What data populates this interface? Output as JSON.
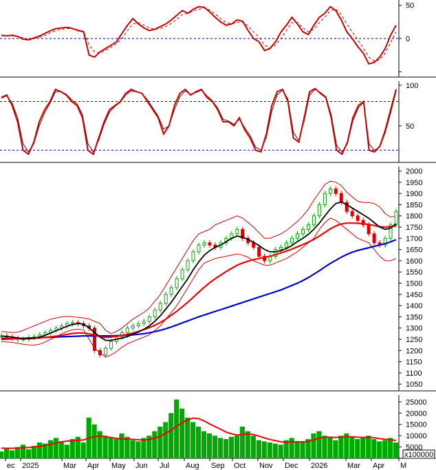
{
  "chart_data": [
    {
      "type": "line",
      "panel": "momentum-oscillator",
      "y_ticks": [
        50,
        0,
        -50
      ],
      "y_tick_labels": [
        "50",
        "0",
        ""
      ],
      "reference_lines": [
        0
      ],
      "ylim": [
        -58,
        58
      ],
      "colors": {
        "main": "#cc0000",
        "signal": "#cc0000",
        "ref": "#0000aa"
      },
      "series": [
        {
          "role": "main",
          "values": [
            5,
            4,
            5,
            3,
            -1,
            -2,
            1,
            4,
            8,
            12,
            15,
            16,
            17,
            15,
            12,
            10,
            -25,
            -28,
            -20,
            -15,
            -10,
            -5,
            8,
            20,
            30,
            22,
            16,
            12,
            14,
            18,
            22,
            28,
            35,
            42,
            38,
            44,
            48,
            47,
            40,
            32,
            25,
            20,
            22,
            28,
            26,
            12,
            0,
            -5,
            -18,
            -15,
            -5,
            10,
            20,
            32,
            22,
            10,
            6,
            20,
            32,
            38,
            48,
            42,
            28,
            10,
            0,
            -12,
            -22,
            -38,
            -36,
            -28,
            -15,
            5,
            20
          ]
        },
        {
          "role": "signal",
          "dashed": true,
          "values": [
            4,
            4,
            4,
            3,
            1,
            -1,
            0,
            2,
            5,
            9,
            12,
            14,
            15,
            15,
            13,
            11,
            -10,
            -20,
            -22,
            -18,
            -13,
            -8,
            0,
            12,
            22,
            24,
            20,
            16,
            14,
            15,
            18,
            23,
            29,
            36,
            38,
            41,
            44,
            46,
            43,
            37,
            30,
            24,
            22,
            24,
            25,
            19,
            10,
            2,
            -10,
            -14,
            -10,
            0,
            12,
            24,
            24,
            16,
            10,
            14,
            24,
            32,
            42,
            44,
            36,
            22,
            10,
            -2,
            -14,
            -28,
            -34,
            -32,
            -22,
            -6,
            10
          ]
        }
      ]
    },
    {
      "type": "line",
      "panel": "stochastic",
      "y_ticks": [
        100,
        50
      ],
      "y_tick_labels": [
        "100",
        "50"
      ],
      "reference_lines": [
        80,
        20
      ],
      "ylim": [
        5,
        105
      ],
      "colors": {
        "main": "#cc0000",
        "signal": "#cc0000",
        "ref": "#0000aa"
      },
      "series": [
        {
          "role": "main",
          "values": [
            85,
            88,
            75,
            55,
            20,
            15,
            30,
            55,
            70,
            80,
            95,
            92,
            88,
            80,
            75,
            60,
            20,
            15,
            35,
            55,
            70,
            75,
            80,
            90,
            95,
            92,
            90,
            80,
            70,
            60,
            40,
            50,
            75,
            90,
            95,
            88,
            92,
            95,
            85,
            80,
            70,
            55,
            55,
            50,
            60,
            45,
            35,
            20,
            18,
            40,
            75,
            92,
            95,
            80,
            35,
            30,
            60,
            92,
            96,
            90,
            85,
            60,
            20,
            15,
            30,
            60,
            75,
            80,
            20,
            18,
            25,
            45,
            70,
            95
          ]
        },
        {
          "role": "signal",
          "values": [
            84,
            87,
            78,
            60,
            28,
            18,
            28,
            50,
            66,
            78,
            92,
            92,
            89,
            82,
            77,
            64,
            28,
            18,
            32,
            52,
            67,
            74,
            79,
            88,
            93,
            92,
            90,
            82,
            72,
            62,
            46,
            50,
            70,
            86,
            93,
            89,
            91,
            94,
            87,
            81,
            72,
            58,
            56,
            52,
            58,
            48,
            38,
            24,
            20,
            36,
            68,
            88,
            94,
            83,
            42,
            32,
            56,
            88,
            95,
            91,
            86,
            64,
            26,
            18,
            28,
            56,
            72,
            79,
            28,
            20,
            24,
            42,
            66,
            93
          ]
        }
      ]
    },
    {
      "type": "line",
      "panel": "price",
      "y_ticks": [
        2000,
        1950,
        1900,
        1850,
        1800,
        1750,
        1700,
        1650,
        1600,
        1550,
        1500,
        1450,
        1400,
        1350,
        1300,
        1250,
        1200,
        1150,
        1100,
        1050
      ],
      "ylim": [
        1020,
        2020
      ],
      "colors": {
        "up": "#00aa00",
        "down": "#dd0000",
        "ma_short": "#000000",
        "ma_mid": "#ee0000",
        "ma_long": "#0000cc",
        "band": "#cc0000"
      },
      "close": [
        1265,
        1260,
        1255,
        1250,
        1250,
        1258,
        1262,
        1270,
        1280,
        1290,
        1300,
        1310,
        1320,
        1325,
        1320,
        1310,
        1300,
        1200,
        1180,
        1210,
        1240,
        1260,
        1280,
        1300,
        1310,
        1320,
        1330,
        1350,
        1380,
        1410,
        1450,
        1480,
        1520,
        1560,
        1600,
        1640,
        1670,
        1680,
        1670,
        1660,
        1680,
        1700,
        1720,
        1740,
        1700,
        1680,
        1660,
        1620,
        1600,
        1620,
        1650,
        1660,
        1680,
        1700,
        1720,
        1740,
        1760,
        1800,
        1850,
        1900,
        1920,
        1900,
        1860,
        1820,
        1800,
        1780,
        1760,
        1720,
        1680,
        1670,
        1700,
        1760,
        1820
      ],
      "ma_short": [
        1265,
        1262,
        1260,
        1256,
        1254,
        1253,
        1255,
        1260,
        1268,
        1278,
        1288,
        1298,
        1308,
        1316,
        1320,
        1318,
        1300,
        1280,
        1260,
        1245,
        1245,
        1250,
        1255,
        1262,
        1272,
        1282,
        1295,
        1310,
        1330,
        1355,
        1385,
        1415,
        1450,
        1485,
        1520,
        1560,
        1595,
        1625,
        1645,
        1660,
        1670,
        1685,
        1700,
        1710,
        1705,
        1695,
        1682,
        1668,
        1650,
        1640,
        1640,
        1645,
        1655,
        1668,
        1685,
        1700,
        1718,
        1740,
        1768,
        1800,
        1830,
        1855,
        1862,
        1850,
        1835,
        1820,
        1805,
        1790,
        1770,
        1750,
        1740,
        1745,
        1765
      ],
      "ma_mid": [
        1255,
        1254,
        1253,
        1252,
        1252,
        1253,
        1254,
        1256,
        1258,
        1261,
        1264,
        1268,
        1272,
        1276,
        1278,
        1278,
        1274,
        1268,
        1262,
        1258,
        1260,
        1263,
        1267,
        1272,
        1278,
        1285,
        1293,
        1302,
        1312,
        1325,
        1340,
        1357,
        1375,
        1395,
        1415,
        1437,
        1460,
        1482,
        1502,
        1520,
        1536,
        1552,
        1566,
        1580,
        1590,
        1598,
        1605,
        1610,
        1615,
        1620,
        1627,
        1635,
        1643,
        1652,
        1662,
        1672,
        1683,
        1695,
        1710,
        1726,
        1742,
        1755,
        1764,
        1768,
        1768,
        1767,
        1765,
        1762,
        1757,
        1752,
        1750,
        1752,
        1756
      ],
      "ma_long": [
        1250,
        1251,
        1252,
        1253,
        1254,
        1255,
        1256,
        1257,
        1258,
        1259,
        1260,
        1261,
        1262,
        1263,
        1264,
        1265,
        1265,
        1265,
        1265,
        1265,
        1265,
        1266,
        1267,
        1268,
        1270,
        1272,
        1275,
        1279,
        1284,
        1290,
        1297,
        1305,
        1314,
        1323,
        1332,
        1341,
        1350,
        1358,
        1366,
        1374,
        1382,
        1390,
        1398,
        1406,
        1414,
        1422,
        1430,
        1438,
        1446,
        1454,
        1462,
        1470,
        1480,
        1490,
        1500,
        1512,
        1525,
        1540,
        1556,
        1572,
        1588,
        1602,
        1616,
        1628,
        1638,
        1646,
        1652,
        1658,
        1664,
        1670,
        1676,
        1684,
        1694
      ],
      "band_upper": [
        1285,
        1282,
        1280,
        1282,
        1290,
        1300,
        1310,
        1320,
        1330,
        1340,
        1345,
        1350,
        1352,
        1350,
        1348,
        1345,
        1340,
        1330,
        1320,
        1290,
        1275,
        1285,
        1300,
        1320,
        1340,
        1355,
        1370,
        1390,
        1420,
        1450,
        1490,
        1530,
        1570,
        1610,
        1650,
        1690,
        1720,
        1730,
        1740,
        1760,
        1770,
        1780,
        1790,
        1800,
        1790,
        1770,
        1750,
        1725,
        1700,
        1700,
        1710,
        1720,
        1735,
        1755,
        1775,
        1800,
        1830,
        1870,
        1905,
        1940,
        1955,
        1950,
        1935,
        1905,
        1885,
        1865,
        1860,
        1860,
        1855,
        1840,
        1810,
        1795,
        1800
      ],
      "band_lower": [
        1240,
        1238,
        1236,
        1232,
        1228,
        1225,
        1224,
        1228,
        1238,
        1250,
        1262,
        1275,
        1285,
        1292,
        1295,
        1292,
        1250,
        1210,
        1190,
        1170,
        1180,
        1195,
        1215,
        1230,
        1240,
        1250,
        1260,
        1270,
        1290,
        1310,
        1340,
        1370,
        1400,
        1440,
        1480,
        1520,
        1560,
        1590,
        1600,
        1610,
        1615,
        1620,
        1625,
        1630,
        1625,
        1615,
        1600,
        1590,
        1580,
        1580,
        1590,
        1600,
        1610,
        1625,
        1640,
        1660,
        1680,
        1700,
        1740,
        1770,
        1790,
        1780,
        1760,
        1740,
        1720,
        1700,
        1690,
        1680,
        1650,
        1620,
        1600,
        1600,
        1610
      ]
    },
    {
      "type": "bar",
      "panel": "volume",
      "y_ticks": [
        25000,
        20000,
        15000,
        10000,
        5000
      ],
      "unit_label": "x100000",
      "ylim": [
        0,
        28000
      ],
      "colors": {
        "bars": "#00aa00",
        "ma": "#ee0000"
      },
      "values": [
        3000,
        4500,
        3500,
        5000,
        6000,
        4000,
        5500,
        7000,
        6500,
        8000,
        9000,
        7500,
        6000,
        8500,
        9500,
        7000,
        18000,
        15000,
        12000,
        10000,
        9000,
        8500,
        11000,
        9500,
        8000,
        7500,
        9000,
        10000,
        12000,
        14000,
        16000,
        20000,
        26000,
        22000,
        18000,
        16000,
        14000,
        12000,
        11000,
        10000,
        9000,
        8500,
        9500,
        10000,
        14000,
        12000,
        10000,
        8000,
        7500,
        7000,
        6500,
        6000,
        8000,
        9000,
        7500,
        7000,
        8500,
        11000,
        12000,
        10000,
        9000,
        8000,
        10000,
        11000,
        9500,
        8500,
        9000,
        10000,
        8500,
        7500,
        8000,
        9000,
        7000
      ],
      "ma": [
        4500,
        4400,
        4400,
        4500,
        4700,
        4800,
        5000,
        5300,
        5700,
        6200,
        6800,
        7300,
        7600,
        7800,
        8000,
        8100,
        9000,
        9600,
        9800,
        9600,
        9200,
        8800,
        8600,
        8500,
        8400,
        8200,
        8100,
        8300,
        8900,
        9800,
        11000,
        12500,
        14200,
        15800,
        17000,
        17800,
        17500,
        16500,
        15200,
        14000,
        12800,
        11600,
        10800,
        10300,
        10600,
        10800,
        10500,
        9800,
        9000,
        8300,
        7800,
        7300,
        7100,
        7200,
        7300,
        7300,
        7500,
        8200,
        8900,
        9300,
        9300,
        9200,
        9300,
        9500,
        9500,
        9300,
        9200,
        9300,
        9100,
        8700,
        8400,
        8200,
        7900
      ]
    },
    {
      "type": "axis",
      "panel": "time-axis",
      "x_tick_labels": [
        "ec",
        "2025",
        "Mar",
        "Apr",
        "May",
        "Jun",
        "Jul",
        "Aug",
        "Sep",
        "Oct",
        "Nov",
        "Dec",
        "2026",
        "Mar",
        "Apr",
        "M"
      ]
    }
  ]
}
